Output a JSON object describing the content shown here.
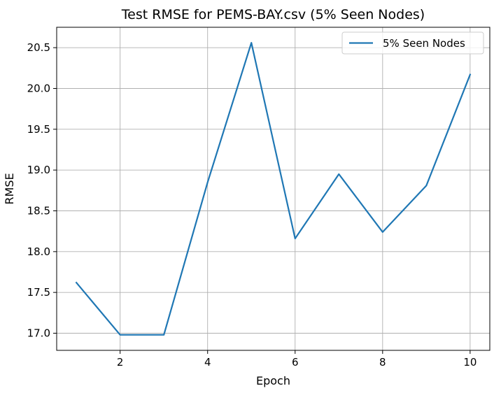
{
  "chart_data": {
    "type": "line",
    "title": "Test RMSE for PEMS-BAY.csv (5% Seen Nodes)",
    "xlabel": "Epoch",
    "ylabel": "RMSE",
    "xlim": [
      0.55,
      10.45
    ],
    "ylim": [
      16.79,
      20.75
    ],
    "xticks": [
      2,
      4,
      6,
      8,
      10
    ],
    "xtick_labels": [
      "2",
      "4",
      "6",
      "8",
      "10"
    ],
    "yticks": [
      17.0,
      17.5,
      18.0,
      18.5,
      19.0,
      19.5,
      20.0,
      20.5
    ],
    "ytick_labels": [
      "17.0",
      "17.5",
      "18.0",
      "18.5",
      "19.0",
      "19.5",
      "20.0",
      "20.5"
    ],
    "grid": true,
    "legend_position": "top-right",
    "series": [
      {
        "name": "5% Seen Nodes",
        "color": "#1f77b4",
        "x": [
          1,
          2,
          3,
          4,
          5,
          6,
          7,
          8,
          9,
          10
        ],
        "y": [
          17.62,
          16.98,
          16.98,
          18.85,
          20.56,
          18.16,
          18.95,
          18.24,
          18.81,
          20.17
        ]
      }
    ]
  }
}
